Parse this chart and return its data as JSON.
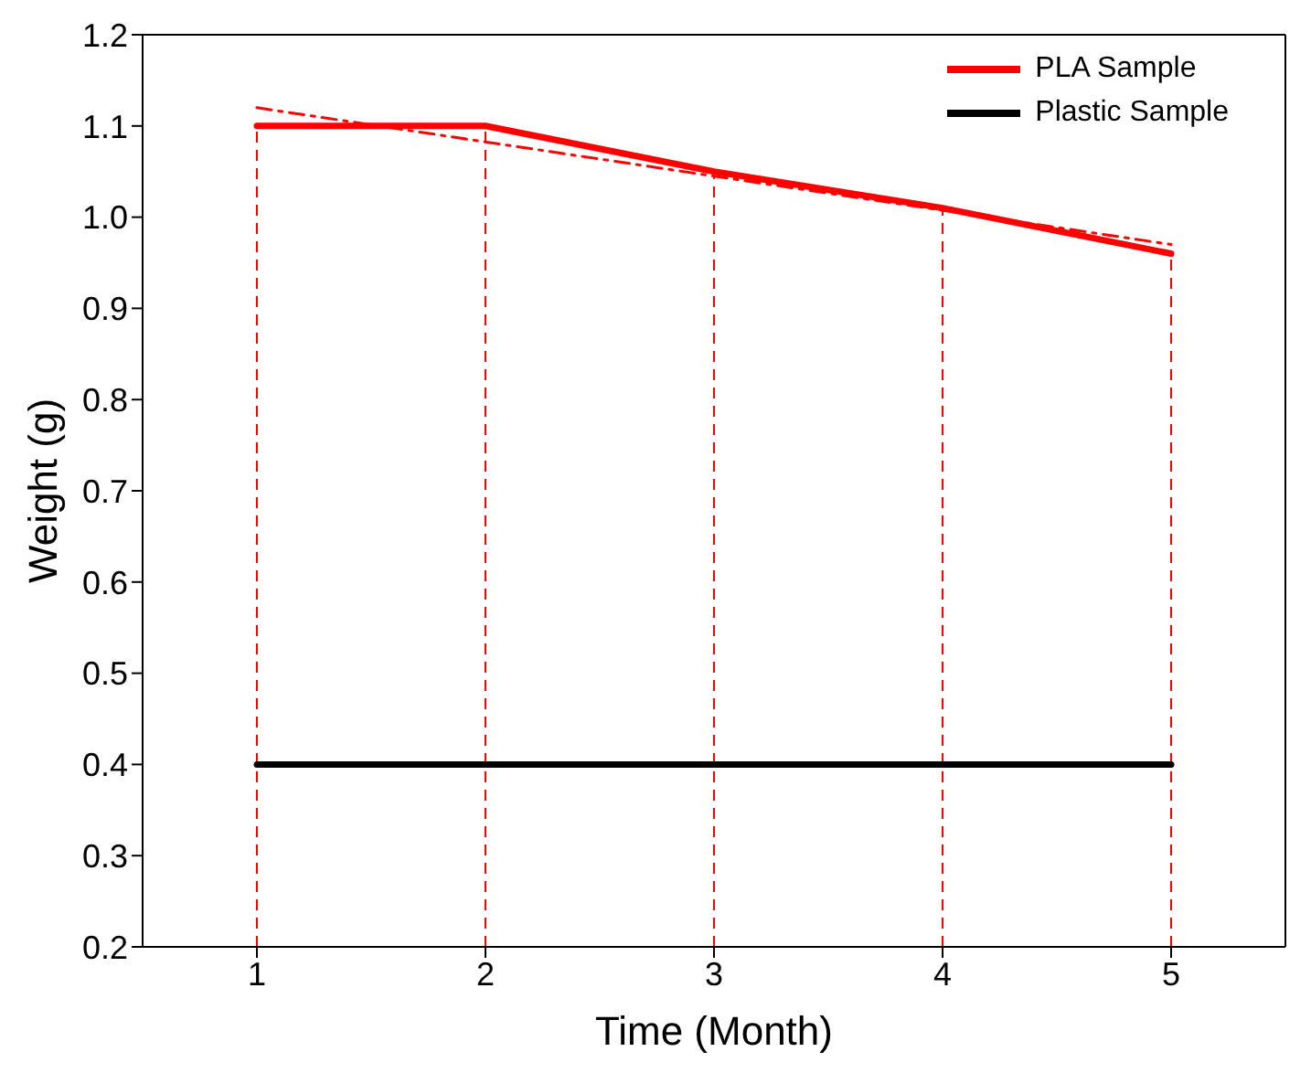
{
  "chart_data": {
    "type": "line",
    "xlabel": "Time (Month)",
    "ylabel": "Weight (g)",
    "x": [
      1,
      2,
      3,
      4,
      5
    ],
    "series": [
      {
        "name": "PLA Sample",
        "color": "#ff0000",
        "values": [
          1.1,
          1.1,
          1.05,
          1.01,
          0.96
        ]
      },
      {
        "name": "Plastic Sample",
        "color": "#000000",
        "values": [
          0.4,
          0.4,
          0.4,
          0.4,
          0.4
        ]
      },
      {
        "color": "#ff0000",
        "x": [
          1,
          5
        ],
        "values": [
          1.12,
          0.97
        ],
        "line_style": "dashed"
      }
    ],
    "ref_lines": [
      {
        "axis": "x",
        "value": 1,
        "color": "#ff0000",
        "line_style": "dashed"
      },
      {
        "axis": "x",
        "value": 2,
        "color": "#ff0000",
        "line_style": "dashed"
      },
      {
        "axis": "x",
        "value": 3,
        "color": "#ff0000",
        "line_style": "dashed"
      },
      {
        "axis": "x",
        "value": 4,
        "color": "#ff0000",
        "line_style": "dashed"
      },
      {
        "axis": "x",
        "value": 5,
        "color": "#ff0000",
        "line_style": "dashed"
      }
    ],
    "xlim": [
      0.5,
      5.5
    ],
    "xticks": [
      1,
      2,
      3,
      4,
      5
    ],
    "ylim": [
      0.2,
      1.2
    ],
    "yticks": [
      0.2,
      0.3,
      0.4,
      0.5,
      0.6,
      0.7,
      0.8,
      0.9,
      {
        "value": 1,
        "label": "1.0"
      },
      1.1,
      1.2
    ],
    "legend": "top right",
    "marker": "none",
    "line_style": "solid"
  }
}
